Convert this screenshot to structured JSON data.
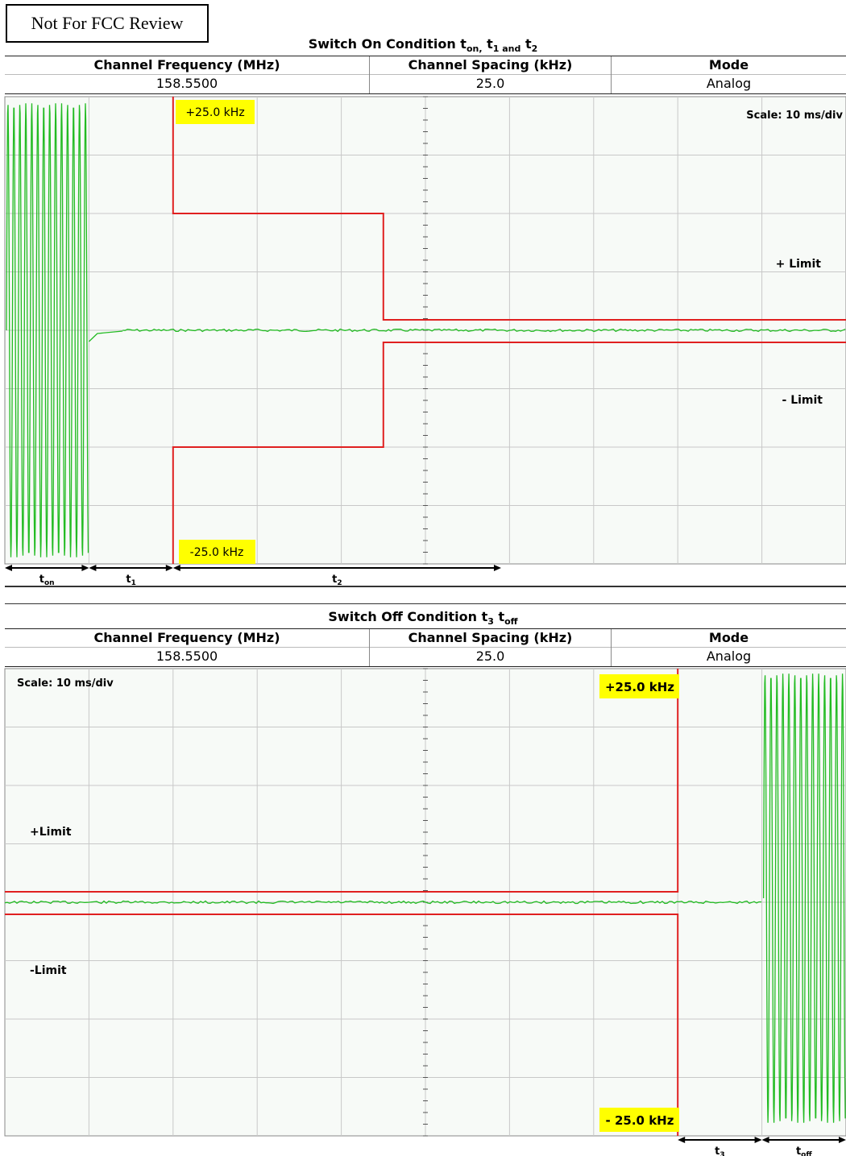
{
  "stamp": "Not For FCC Review",
  "chart_data": [
    {
      "type": "line",
      "title_main": "Switch On Condition t",
      "title_sub1": "on,",
      "title_t1": "t",
      "title_sub2": "1 and",
      "title_t2": "t",
      "title_sub3": "2",
      "table": {
        "headers": [
          "Channel Frequency (MHz)",
          "Channel Spacing (kHz)",
          "Mode"
        ],
        "values": [
          "158.5500",
          "25.0",
          "Analog"
        ]
      },
      "scale_label": "Scale: 10 ms/div",
      "plus_limit_label": "+ Limit",
      "minus_limit_label": "- Limit",
      "upper_box": "+25.0 kHz",
      "lower_box": "-25.0 kHz",
      "x_range_ms": [
        0,
        100
      ],
      "y_divisions": 8,
      "limits_kHz": {
        "upper": [
          [
            20,
            25
          ],
          [
            45,
            25
          ],
          [
            45,
            12.5
          ],
          [
            45,
            1.7
          ],
          [
            100,
            1.7
          ]
        ],
        "start_x_ms": 20,
        "t1_end_ms": 45
      },
      "timing_markers": [
        {
          "label": "t",
          "sub": "on",
          "from_ms": 0,
          "to_ms": 10
        },
        {
          "label": "t",
          "sub": "1",
          "from_ms": 10,
          "to_ms": 20
        },
        {
          "label": "t",
          "sub": "2",
          "from_ms": 20,
          "to_ms": 59
        }
      ],
      "modulation_region_ms": [
        0,
        10
      ]
    },
    {
      "type": "line",
      "title_main": "Switch Off Condition t",
      "title_sub1": "3",
      "title_t2": "t",
      "title_sub2": "off",
      "table": {
        "headers": [
          "Channel Frequency (MHz)",
          "Channel Spacing (kHz)",
          "Mode"
        ],
        "values": [
          "158.5500",
          "25.0",
          "Analog"
        ]
      },
      "scale_label": "Scale: 10 ms/div",
      "plus_limit_label": "+Limit",
      "minus_limit_label": "-Limit",
      "upper_box": "+25.0 kHz",
      "lower_box": "- 25.0 kHz",
      "x_range_ms": [
        0,
        100
      ],
      "y_divisions": 8,
      "limits_end_ms": 80,
      "timing_markers": [
        {
          "label": "t",
          "sub": "3",
          "from_ms": 80,
          "to_ms": 90
        },
        {
          "label": "t",
          "sub": "off",
          "from_ms": 90,
          "to_ms": 100
        }
      ],
      "modulation_region_ms": [
        90,
        100
      ]
    }
  ],
  "colors": {
    "trace": "#22bb22",
    "limit": "#e02020",
    "grid": "#c8c8c8",
    "box": "#ffff00"
  }
}
